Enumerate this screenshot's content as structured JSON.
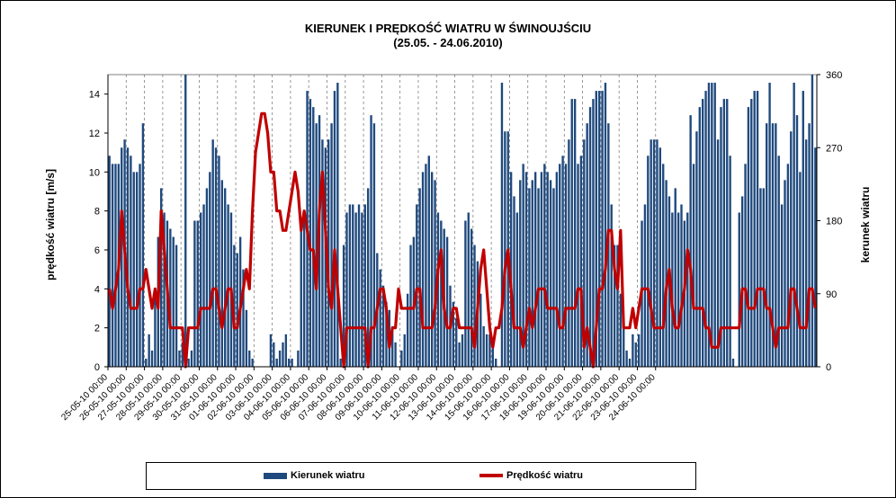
{
  "title_line1": "KIERUNEK I PRĘDKOŚĆ WIATRU W ŚWINOUJŚCIU",
  "title_line2": "(25.05. - 24.06.2010)",
  "chart_data": {
    "type": "bar+line",
    "ylabel": "prędkość wiatru [m/s]",
    "ylabel_right": "kerunek wiatru",
    "ylim": [
      0,
      15
    ],
    "yticks": [
      0,
      2,
      4,
      6,
      8,
      10,
      12,
      14
    ],
    "ylim_right": [
      0,
      360
    ],
    "yticks_right": [
      0,
      90,
      180,
      270,
      360
    ],
    "grid": "vertical dashed lines at date labels",
    "legend_position": "bottom",
    "x_labels": [
      "25-05-10 00:00",
      "26-05-10 00:00",
      "27-05-10 00:00",
      "28-05-10 00:00",
      "29-05-10 00:00",
      "30-05-10 00:00",
      "31-05-10 00:00",
      "01-06-10 00:00",
      "02-06-10 00:00",
      "03-06-10 00:00",
      "04-06-10 00:00",
      "05-06-10 00:00",
      "06-06-10 00:00",
      "07-06-10 00:00",
      "08-06-10 00:00",
      "09-06-10 00:00",
      "10-06-10 00:00",
      "11-06-10 00:00",
      "12-06-10 00:00",
      "13-06-10 00:00",
      "14-06-10 00:00",
      "15-06-10 00:00",
      "16-06-10 00:00",
      "17-06-10 00:00",
      "18-06-10 00:00",
      "19-06-10 00:00",
      "20-06-10 00:00",
      "21-06-10 00:00",
      "22-06-10 00:00",
      "23-06-10 00:00",
      "24-06-10 00:00"
    ],
    "points_per_day": 6,
    "series": [
      {
        "name": "Kierunek wiatru",
        "axis": "right",
        "kind": "bar",
        "color": "#1F497D",
        "values": [
          260,
          250,
          250,
          250,
          270,
          280,
          270,
          260,
          240,
          240,
          250,
          300,
          10,
          40,
          20,
          90,
          160,
          220,
          190,
          180,
          170,
          160,
          150,
          20,
          30,
          360,
          10,
          20,
          180,
          180,
          190,
          200,
          220,
          240,
          280,
          270,
          260,
          230,
          220,
          200,
          190,
          150,
          140,
          160,
          120,
          70,
          20,
          10,
          0,
          0,
          0,
          0,
          0,
          40,
          30,
          10,
          20,
          30,
          40,
          10,
          10,
          0,
          20,
          180,
          190,
          340,
          330,
          320,
          300,
          310,
          280,
          270,
          280,
          300,
          340,
          350,
          10,
          150,
          190,
          200,
          200,
          190,
          200,
          190,
          200,
          220,
          310,
          300,
          140,
          120,
          100,
          80,
          70,
          50,
          30,
          0,
          20,
          40,
          90,
          150,
          160,
          200,
          220,
          240,
          250,
          260,
          240,
          230,
          190,
          180,
          170,
          160,
          100,
          80,
          60,
          30,
          40,
          180,
          190,
          170,
          150,
          130,
          90,
          50,
          40,
          40,
          30,
          10,
          0,
          350,
          290,
          290,
          240,
          210,
          190,
          230,
          250,
          240,
          220,
          230,
          240,
          220,
          240,
          250,
          240,
          230,
          220,
          240,
          250,
          260,
          250,
          280,
          330,
          330,
          250,
          260,
          280,
          300,
          320,
          330,
          340,
          340,
          340,
          350,
          300,
          200,
          150,
          150,
          90,
          50,
          20,
          10,
          40,
          30,
          40,
          180,
          200,
          260,
          280,
          280,
          280,
          270,
          250,
          230,
          210,
          190,
          220,
          190,
          200,
          180,
          190,
          310,
          250,
          290,
          320,
          330,
          340,
          350,
          350,
          350,
          280,
          320,
          330,
          330,
          260,
          10,
          0,
          190,
          210,
          250,
          320,
          330,
          340,
          340,
          220,
          220,
          300,
          350,
          300,
          300,
          260,
          200,
          230,
          250,
          290,
          350,
          310,
          240,
          340,
          280,
          300,
          360,
          270
        ]
      },
      {
        "name": "Prędkość wiatru",
        "axis": "left",
        "kind": "line",
        "color": "#C00000",
        "values": [
          4,
          3,
          4,
          5,
          8,
          6,
          4,
          3,
          3,
          3,
          4,
          4,
          5,
          4,
          3,
          4,
          3,
          8,
          6,
          4,
          2,
          2,
          2,
          2,
          2,
          0,
          2,
          2,
          2,
          2,
          3,
          3,
          3,
          3,
          4,
          4,
          3,
          2,
          3,
          4,
          4,
          2,
          2,
          3,
          4,
          5,
          4,
          8,
          11,
          12,
          13,
          13,
          12,
          10,
          10,
          8,
          8,
          7,
          7,
          8,
          9,
          10,
          9,
          7,
          8,
          7,
          6,
          6,
          4,
          8,
          10,
          7,
          4,
          3,
          6,
          4,
          2,
          0,
          2,
          2,
          2,
          2,
          2,
          2,
          2,
          0,
          2,
          2,
          3,
          4,
          4,
          3,
          1,
          2,
          2,
          4,
          3,
          3,
          3,
          3,
          3,
          4,
          4,
          2,
          2,
          2,
          2,
          3,
          5,
          6,
          3,
          2,
          2,
          3,
          3,
          2,
          2,
          2,
          2,
          2,
          1,
          3,
          5,
          6,
          4,
          2,
          1,
          2,
          2,
          3,
          5,
          6,
          4,
          2,
          2,
          2,
          1,
          2,
          3,
          2,
          3,
          4,
          4,
          4,
          3,
          3,
          3,
          3,
          2,
          2,
          3,
          3,
          3,
          3,
          4,
          4,
          1,
          2,
          1,
          0,
          2,
          4,
          4,
          5,
          7,
          7,
          5,
          4,
          7,
          2,
          2,
          2,
          3,
          2,
          3,
          4,
          4,
          4,
          3,
          2,
          2,
          2,
          2,
          4,
          5,
          3,
          2,
          2,
          3,
          4,
          6,
          5,
          3,
          3,
          3,
          3,
          2,
          2,
          1,
          1,
          1,
          2,
          2,
          2,
          2,
          2,
          2,
          2,
          4,
          4,
          3,
          3,
          3,
          4,
          4,
          4,
          3,
          3,
          2,
          1,
          2,
          2,
          2,
          2,
          4,
          4,
          3,
          2,
          2,
          2,
          4,
          4,
          3
        ]
      }
    ]
  },
  "legend": {
    "bar_label": "Kierunek wiatru",
    "line_label": "Prędkość wiatru"
  }
}
